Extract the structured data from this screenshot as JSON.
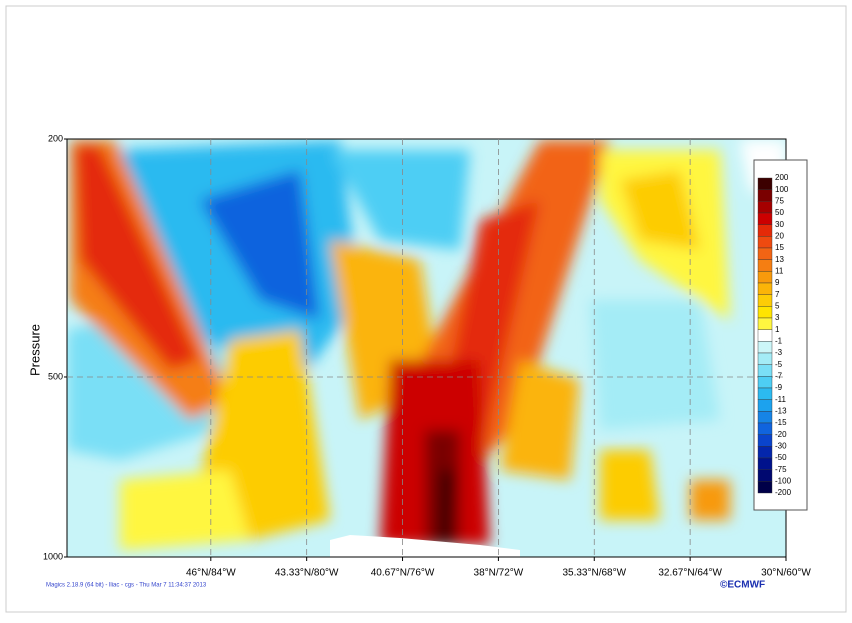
{
  "chart_data": {
    "type": "contour",
    "ylabel": "Pressure",
    "yscale": "log",
    "y_inverted": true,
    "ylim": [
      200,
      1000
    ],
    "yticks": [
      200,
      500,
      1000
    ],
    "xlim": [
      -90,
      -60
    ],
    "xticks": [
      {
        "value": -84,
        "label": "46°N/84°W"
      },
      {
        "value": -80,
        "label": "43.33°N/80°W"
      },
      {
        "value": -76,
        "label": "40.67°N/76°W"
      },
      {
        "value": -72,
        "label": "38°N/72°W"
      },
      {
        "value": -68,
        "label": "35.33°N/68°W"
      },
      {
        "value": -64,
        "label": "32.67°N/64°W"
      },
      {
        "value": -60,
        "label": "30°N/60°W"
      }
    ],
    "grid": true,
    "legend": {
      "levels": [
        200,
        100,
        75,
        50,
        30,
        20,
        15,
        13,
        11,
        9,
        7,
        5,
        3,
        1,
        -1,
        -3,
        -5,
        -7,
        -9,
        -11,
        -13,
        -15,
        -20,
        -30,
        -50,
        -75,
        -100,
        -200
      ],
      "colors": [
        "#3c0000",
        "#7a0000",
        "#a50000",
        "#cc0000",
        "#e42a08",
        "#ee4a10",
        "#f26414",
        "#f57e12",
        "#f89a0c",
        "#fbb408",
        "#fdcc06",
        "#ffe400",
        "#fff640",
        "#ffffff",
        "#ccf6f8",
        "#a4ecf6",
        "#7adff6",
        "#4ecef4",
        "#2cbaf0",
        "#1ca2ee",
        "#1684e6",
        "#1064de",
        "#0a44cc",
        "#0426ac",
        "#00128c",
        "#000870",
        "#000048"
      ]
    },
    "footer": "Magics 2.18.9 (64 bit) - lliac - cgs - Thu Mar  7 11:34:37 2013",
    "logo": "©ECMWF"
  }
}
